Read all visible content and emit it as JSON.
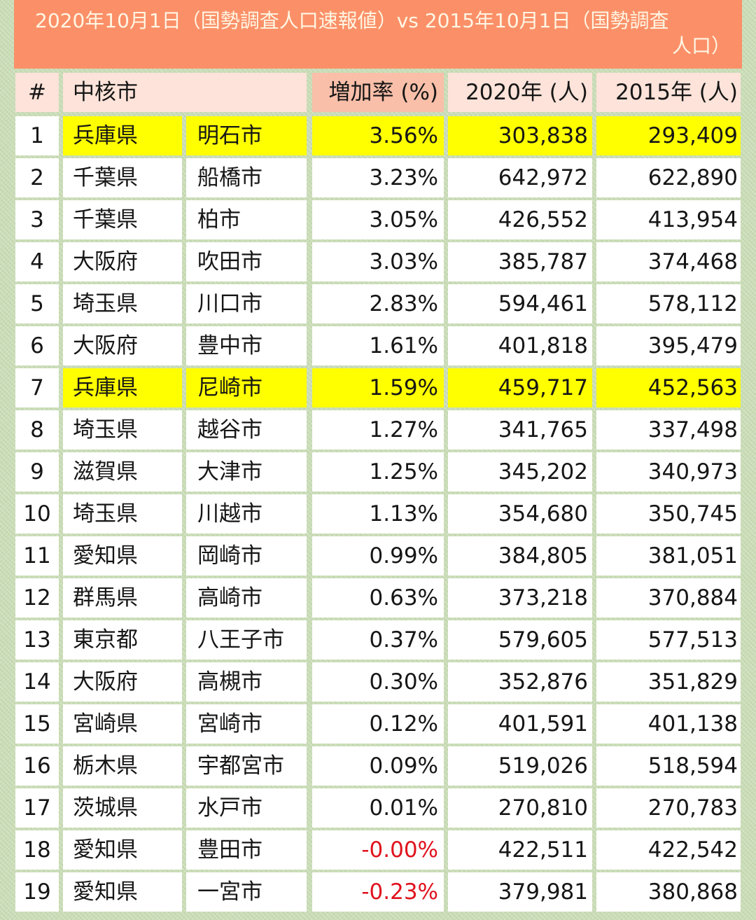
{
  "title": {
    "line1": "2020年10月1日（国勢調査人口速報値）vs 2015年10月1日（国勢調査",
    "line2": "人口）"
  },
  "colors": {
    "title_bg": "#fb9068",
    "header_bg": "#fde3d9",
    "rate_header_bg": "#f9bfa9",
    "highlight": "#ffff00",
    "negative_text": "#e0121e",
    "background": "#c9dcb6"
  },
  "table": {
    "headers": {
      "rank": "#",
      "city": "中核市",
      "rate": "増加率 (%)",
      "pop2020": "2020年 (人)",
      "pop2015": "2015年 (人)"
    },
    "rows": [
      {
        "rank": "1",
        "pref": "兵庫県",
        "city": "明石市",
        "rate": "3.56%",
        "pop2020": "303,838",
        "pop2015": "293,409",
        "highlight": true
      },
      {
        "rank": "2",
        "pref": "千葉県",
        "city": "船橋市",
        "rate": "3.23%",
        "pop2020": "642,972",
        "pop2015": "622,890"
      },
      {
        "rank": "3",
        "pref": "千葉県",
        "city": "柏市",
        "rate": "3.05%",
        "pop2020": "426,552",
        "pop2015": "413,954"
      },
      {
        "rank": "4",
        "pref": "大阪府",
        "city": "吹田市",
        "rate": "3.03%",
        "pop2020": "385,787",
        "pop2015": "374,468"
      },
      {
        "rank": "5",
        "pref": "埼玉県",
        "city": "川口市",
        "rate": "2.83%",
        "pop2020": "594,461",
        "pop2015": "578,112"
      },
      {
        "rank": "6",
        "pref": "大阪府",
        "city": "豊中市",
        "rate": "1.61%",
        "pop2020": "401,818",
        "pop2015": "395,479"
      },
      {
        "rank": "7",
        "pref": "兵庫県",
        "city": "尼崎市",
        "rate": "1.59%",
        "pop2020": "459,717",
        "pop2015": "452,563",
        "highlight": true
      },
      {
        "rank": "8",
        "pref": "埼玉県",
        "city": "越谷市",
        "rate": "1.27%",
        "pop2020": "341,765",
        "pop2015": "337,498"
      },
      {
        "rank": "9",
        "pref": "滋賀県",
        "city": "大津市",
        "rate": "1.25%",
        "pop2020": "345,202",
        "pop2015": "340,973"
      },
      {
        "rank": "10",
        "pref": "埼玉県",
        "city": "川越市",
        "rate": "1.13%",
        "pop2020": "354,680",
        "pop2015": "350,745"
      },
      {
        "rank": "11",
        "pref": "愛知県",
        "city": "岡崎市",
        "rate": "0.99%",
        "pop2020": "384,805",
        "pop2015": "381,051"
      },
      {
        "rank": "12",
        "pref": "群馬県",
        "city": "高崎市",
        "rate": "0.63%",
        "pop2020": "373,218",
        "pop2015": "370,884"
      },
      {
        "rank": "13",
        "pref": "東京都",
        "city": "八王子市",
        "rate": "0.37%",
        "pop2020": "579,605",
        "pop2015": "577,513"
      },
      {
        "rank": "14",
        "pref": "大阪府",
        "city": "高槻市",
        "rate": "0.30%",
        "pop2020": "352,876",
        "pop2015": "351,829"
      },
      {
        "rank": "15",
        "pref": "宮崎県",
        "city": "宮崎市",
        "rate": "0.12%",
        "pop2020": "401,591",
        "pop2015": "401,138"
      },
      {
        "rank": "16",
        "pref": "栃木県",
        "city": "宇都宮市",
        "rate": "0.09%",
        "pop2020": "519,026",
        "pop2015": "518,594"
      },
      {
        "rank": "17",
        "pref": "茨城県",
        "city": "水戸市",
        "rate": "0.01%",
        "pop2020": "270,810",
        "pop2015": "270,783"
      },
      {
        "rank": "18",
        "pref": "愛知県",
        "city": "豊田市",
        "rate": "-0.00%",
        "pop2020": "422,511",
        "pop2015": "422,542",
        "negative": true
      },
      {
        "rank": "19",
        "pref": "愛知県",
        "city": "一宮市",
        "rate": "-0.23%",
        "pop2020": "379,981",
        "pop2015": "380,868",
        "negative": true
      }
    ]
  }
}
